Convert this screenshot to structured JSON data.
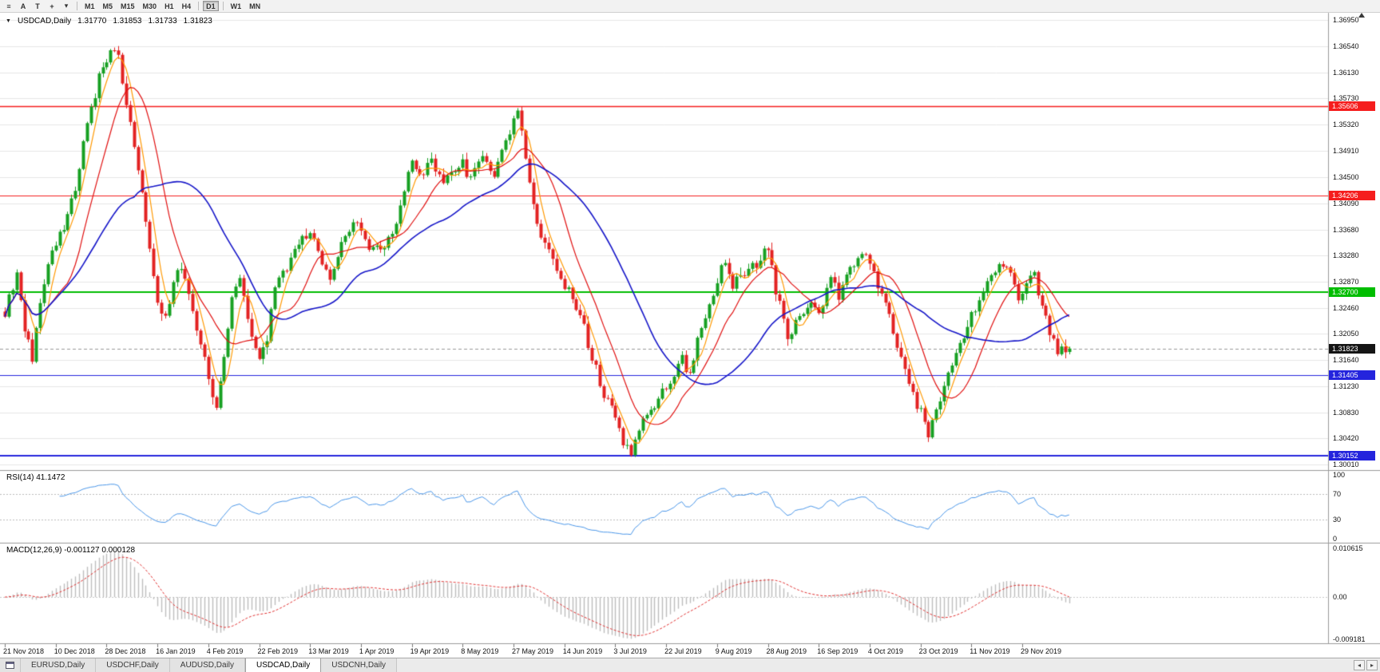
{
  "toolbar": {
    "icon_buttons": [
      {
        "name": "menu-icon",
        "glyph": "≡"
      },
      {
        "name": "pointer-a-button",
        "glyph": "A"
      },
      {
        "name": "text-tool-button",
        "glyph": "T"
      },
      {
        "name": "crosshair-button",
        "glyph": "+"
      },
      {
        "name": "dropdown-caret-icon",
        "glyph": "▾"
      }
    ],
    "timeframes": [
      "M1",
      "M5",
      "M15",
      "M30",
      "H1",
      "H4",
      "D1",
      "W1",
      "MN"
    ],
    "active_timeframe": "D1"
  },
  "chart": {
    "symbol_dropdown_glyph": "▼",
    "symbol": "USDCAD,Daily",
    "open": "1.31770",
    "high": "1.31853",
    "low": "1.31733",
    "close": "1.31823",
    "price_ticks": [
      "1.36950",
      "1.36540",
      "1.36130",
      "1.35730",
      "1.35320",
      "1.34910",
      "1.34500",
      "1.34090",
      "1.33680",
      "1.33280",
      "1.32870",
      "1.32460",
      "1.32050",
      "1.31640",
      "1.31230",
      "1.30830",
      "1.30420",
      "1.30010"
    ],
    "badges": [
      {
        "text": "1.35606",
        "color": "#f51d1d"
      },
      {
        "text": "1.34206",
        "color": "#f51d1d"
      },
      {
        "text": "1.32700",
        "color": "#00bd00"
      },
      {
        "text": "1.31823",
        "color": "#151515"
      },
      {
        "text": "1.31405",
        "color": "#2424dd"
      },
      {
        "text": "1.30152",
        "color": "#2424dd"
      }
    ]
  },
  "rsi": {
    "label": "RSI(14) 41.1472",
    "axis": [
      "100",
      "70",
      "30",
      "0"
    ],
    "axis_values": [
      100,
      70,
      30,
      0
    ]
  },
  "macd": {
    "label": "MACD(12,26,9) -0.001127 0.000128",
    "axis": [
      "0.010615",
      "0.00",
      "-0.009181"
    ],
    "axis_values": [
      0.010615,
      0,
      -0.009181
    ]
  },
  "time_axis": [
    "21 Nov 2018",
    "10 Dec 2018",
    "28 Dec 2018",
    "16 Jan 2019",
    "4 Feb 2019",
    "22 Feb 2019",
    "13 Mar 2019",
    "1 Apr 2019",
    "19 Apr 2019",
    "8 May 2019",
    "27 May 2019",
    "14 Jun 2019",
    "3 Jul 2019",
    "22 Jul 2019",
    "9 Aug 2019",
    "28 Aug 2019",
    "16 Sep 2019",
    "4 Oct 2019",
    "23 Oct 2019",
    "11 Nov 2019",
    "29 Nov 2019"
  ],
  "tabs": {
    "items": [
      {
        "label": "EURUSD,Daily",
        "active": false
      },
      {
        "label": "USDCHF,Daily",
        "active": false
      },
      {
        "label": "AUDUSD,Daily",
        "active": false
      },
      {
        "label": "USDCAD,Daily",
        "active": true
      },
      {
        "label": "USDCNH,Daily",
        "active": false
      }
    ],
    "scroll_left_glyph": "◂",
    "scroll_right_glyph": "▸"
  },
  "chart_data": {
    "type": "candlestick",
    "symbol": "USDCAD",
    "timeframe": "Daily",
    "num_candles": 273,
    "ohlc_current": {
      "open": 1.3177,
      "high": 1.31853,
      "low": 1.31733,
      "close": 1.31823
    },
    "price_range": {
      "min": 1.2994,
      "max": 1.3706
    },
    "candle_colors": {
      "up": "#17a022",
      "down": "#e32222"
    },
    "close_path_anchors": [
      [
        0,
        1.324
      ],
      [
        3,
        1.3298
      ],
      [
        5,
        1.321
      ],
      [
        7,
        1.3168
      ],
      [
        9,
        1.3255
      ],
      [
        12,
        1.333
      ],
      [
        15,
        1.3372
      ],
      [
        18,
        1.3432
      ],
      [
        21,
        1.353
      ],
      [
        24,
        1.3605
      ],
      [
        27,
        1.3652
      ],
      [
        29,
        1.3638
      ],
      [
        31,
        1.3565
      ],
      [
        33,
        1.3495
      ],
      [
        35,
        1.343
      ],
      [
        37,
        1.333
      ],
      [
        39,
        1.3252
      ],
      [
        41,
        1.3232
      ],
      [
        43,
        1.329
      ],
      [
        45,
        1.3312
      ],
      [
        47,
        1.3262
      ],
      [
        49,
        1.3212
      ],
      [
        52,
        1.3142
      ],
      [
        54,
        1.3088
      ],
      [
        56,
        1.3165
      ],
      [
        58,
        1.3262
      ],
      [
        60,
        1.33
      ],
      [
        62,
        1.3232
      ],
      [
        65,
        1.3158
      ],
      [
        67,
        1.3202
      ],
      [
        69,
        1.3272
      ],
      [
        72,
        1.3312
      ],
      [
        75,
        1.3342
      ],
      [
        78,
        1.3366
      ],
      [
        80,
        1.333
      ],
      [
        83,
        1.3292
      ],
      [
        86,
        1.3342
      ],
      [
        89,
        1.3382
      ],
      [
        91,
        1.3358
      ],
      [
        93,
        1.334
      ],
      [
        96,
        1.3332
      ],
      [
        99,
        1.3362
      ],
      [
        102,
        1.3422
      ],
      [
        104,
        1.3482
      ],
      [
        106,
        1.3452
      ],
      [
        109,
        1.3472
      ],
      [
        112,
        1.3446
      ],
      [
        115,
        1.3466
      ],
      [
        117,
        1.3476
      ],
      [
        119,
        1.3442
      ],
      [
        122,
        1.3482
      ],
      [
        125,
        1.3452
      ],
      [
        128,
        1.3502
      ],
      [
        131,
        1.3556
      ],
      [
        133,
        1.3482
      ],
      [
        135,
        1.3402
      ],
      [
        138,
        1.3342
      ],
      [
        141,
        1.3302
      ],
      [
        144,
        1.3272
      ],
      [
        147,
        1.3232
      ],
      [
        150,
        1.3172
      ],
      [
        153,
        1.3112
      ],
      [
        156,
        1.3072
      ],
      [
        158,
        1.3038
      ],
      [
        160,
        1.3022
      ],
      [
        162,
        1.3056
      ],
      [
        165,
        1.3086
      ],
      [
        168,
        1.3112
      ],
      [
        170,
        1.3136
      ],
      [
        173,
        1.3166
      ],
      [
        175,
        1.3142
      ],
      [
        178,
        1.3216
      ],
      [
        181,
        1.3266
      ],
      [
        184,
        1.3322
      ],
      [
        186,
        1.3282
      ],
      [
        189,
        1.3296
      ],
      [
        192,
        1.3316
      ],
      [
        195,
        1.3342
      ],
      [
        197,
        1.3272
      ],
      [
        200,
        1.3202
      ],
      [
        203,
        1.3232
      ],
      [
        206,
        1.3256
      ],
      [
        208,
        1.3236
      ],
      [
        211,
        1.3292
      ],
      [
        213,
        1.3266
      ],
      [
        216,
        1.3302
      ],
      [
        219,
        1.3332
      ],
      [
        221,
        1.3322
      ],
      [
        223,
        1.3282
      ],
      [
        226,
        1.3232
      ],
      [
        229,
        1.3172
      ],
      [
        232,
        1.3112
      ],
      [
        234,
        1.3082
      ],
      [
        236,
        1.3052
      ],
      [
        239,
        1.3106
      ],
      [
        242,
        1.3162
      ],
      [
        245,
        1.3202
      ],
      [
        247,
        1.3236
      ],
      [
        250,
        1.3272
      ],
      [
        253,
        1.3302
      ],
      [
        255,
        1.3316
      ],
      [
        257,
        1.3292
      ],
      [
        259,
        1.3262
      ],
      [
        261,
        1.3286
      ],
      [
        263,
        1.3302
      ],
      [
        265,
        1.3246
      ],
      [
        267,
        1.3212
      ],
      [
        269,
        1.3182
      ],
      [
        271,
        1.3172
      ],
      [
        272,
        1.31823
      ]
    ],
    "moving_averages": [
      {
        "type": "sma",
        "period": 5,
        "color": "#ff9800"
      },
      {
        "type": "sma",
        "period": 13,
        "color": "#e01010"
      },
      {
        "type": "sma",
        "period": 34,
        "color": "#1515c8"
      }
    ],
    "horizontal_lines": [
      {
        "price": 1.35606,
        "color": "#f51d1d",
        "width": 1.4
      },
      {
        "price": 1.34206,
        "color": "#f51d1d",
        "width": 1.2
      },
      {
        "price": 1.327,
        "color": "#00bd00",
        "width": 2
      },
      {
        "price": 1.31405,
        "color": "#2424dd",
        "width": 1.2
      },
      {
        "price": 1.30152,
        "color": "#2424dd",
        "width": 2
      }
    ],
    "current_price": 1.31823,
    "rsi": {
      "period": 14,
      "color": "#4a96e8",
      "current": 41.1472,
      "levels": [
        30,
        70
      ]
    },
    "macd": {
      "fast": 12,
      "slow": 26,
      "signal": 9,
      "hist_color": "#bdbdbd",
      "signal_color": "#e03030",
      "current": -0.001127,
      "signal_current": 0.000128,
      "axis_max": 0.010615,
      "axis_min": -0.009181
    },
    "noise": {
      "seed": 20191210,
      "close_sigma": 0.0009,
      "wick_max": 0.0011
    }
  }
}
